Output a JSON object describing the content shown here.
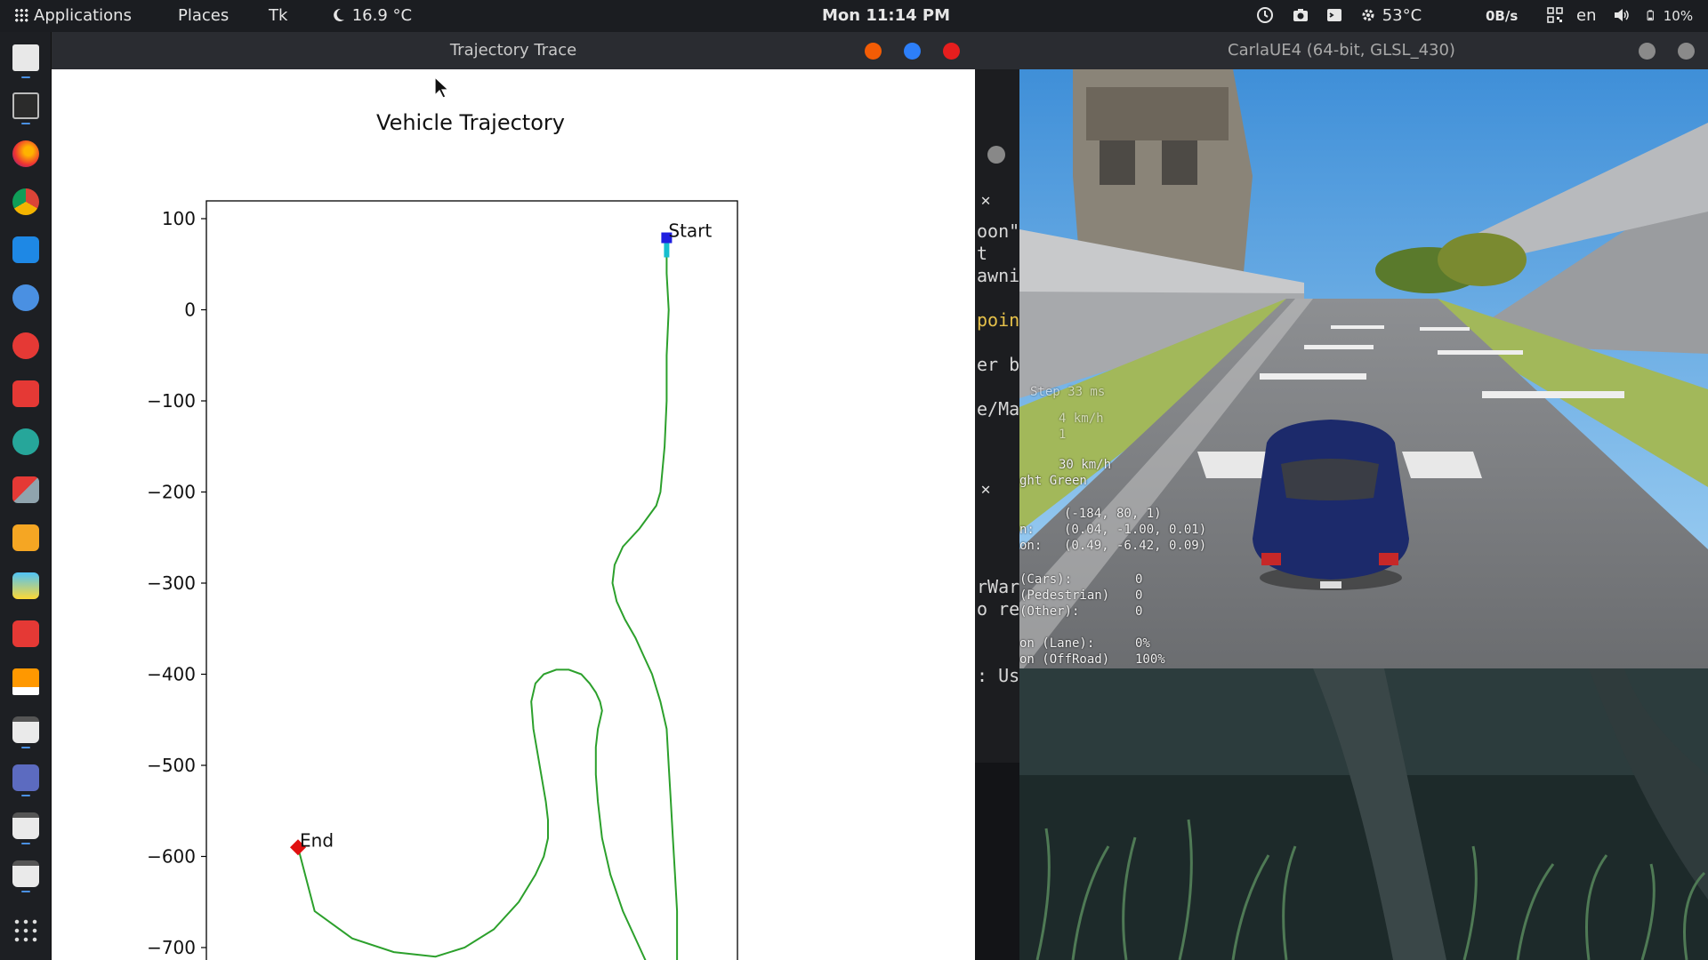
{
  "top_panel": {
    "applications": "Applications",
    "places": "Places",
    "tk": "Tk",
    "weather": "16.9 °C",
    "clock": "Mon 11:14 PM",
    "cpu_temp": "53°C",
    "net_speed": "0B/s",
    "language": "en",
    "battery": "10%"
  },
  "trajectory_window": {
    "title": "Trajectory Trace"
  },
  "carla_window": {
    "title": "CarlaUE4 (64-bit, GLSL_430)"
  },
  "chart_data": {
    "type": "line",
    "title": "Vehicle Trajectory",
    "xlabel": "",
    "ylabel": "",
    "ylim": [
      -750,
      120
    ],
    "yticks": [
      100,
      0,
      -100,
      -200,
      -300,
      -400,
      -500,
      -600,
      -700
    ],
    "ytick_labels": [
      "100",
      "0",
      "−100",
      "−200",
      "−300",
      "−400",
      "−500",
      "−600",
      "−700"
    ],
    "grid": false,
    "series": [
      {
        "color": "#2ca02c",
        "x": [
          -9,
          -9,
          -8,
          -9,
          -9,
          -10,
          -12,
          -14,
          -22,
          -30,
          -34,
          -35,
          -33,
          -29,
          -24,
          -20,
          -16,
          -12,
          -9,
          -8,
          -7,
          -6,
          -5,
          -4,
          -4,
          -4,
          -4,
          -5,
          -6,
          -8,
          -12,
          -16,
          -22,
          -30,
          -36,
          -40,
          -42,
          -43,
          -43,
          -42,
          -41,
          -40,
          -41,
          -43,
          -46,
          -50,
          -56,
          -62,
          -68,
          -72,
          -74,
          -73,
          -70,
          -67,
          -66,
          -66,
          -68,
          -72,
          -80,
          -92,
          -106,
          -120,
          -140,
          -160,
          -178,
          -186
        ],
        "y": [
          75,
          40,
          0,
          -50,
          -100,
          -150,
          -200,
          -215,
          -240,
          -260,
          -280,
          -300,
          -320,
          -340,
          -360,
          -380,
          -400,
          -430,
          -460,
          -500,
          -540,
          -580,
          -620,
          -660,
          -690,
          -710,
          -720,
          -730,
          -740,
          -740,
          -738,
          -730,
          -700,
          -660,
          -620,
          -580,
          -540,
          -510,
          -480,
          -460,
          -450,
          -440,
          -430,
          -420,
          -410,
          -400,
          -395,
          -395,
          -400,
          -410,
          -430,
          -460,
          -500,
          -540,
          -560,
          -580,
          -600,
          -620,
          -650,
          -680,
          -700,
          -710,
          -705,
          -690,
          -660,
          -590
        ]
      }
    ],
    "markers": [
      {
        "label": "Start",
        "color": "#1f1fe0",
        "x": -9,
        "y": 79
      },
      {
        "label": "End",
        "color": "#e01010",
        "x": -186,
        "y": -590
      }
    ]
  },
  "hud": {
    "step": "Step  33 ms",
    "speed": "4 km/h",
    "speed2": "1",
    "speed_limit": "30 km/h",
    "traffic_light": "ght  Green",
    "location": "(-184, 80, 1)",
    "accel_label": "n:",
    "accel": "(0.04, -1.00, 0.01)",
    "gyro_label": "on:",
    "gyro": "(0.49, -6.42, 0.09)",
    "coll_cars": "(Cars):",
    "coll_cars_val": "0",
    "coll_ped": "(Pedestrian)",
    "coll_ped_val": "0",
    "coll_other": "(Other):",
    "coll_other_val": "0",
    "lane": "on (Lane):",
    "lane_val": "0%",
    "offroad": "on (OffRoad)",
    "offroad_val": "100%"
  },
  "side_text": {
    "l1": "oon\"",
    "l2": "t",
    "l3": "awni",
    "l4": "poin",
    "l5": "er b",
    "l6": "e/Ma",
    "l7": "rWar",
    "l8": "o re",
    "l9": ": Us"
  },
  "colors": {
    "panel": "#1b1d21",
    "accent": "#4a90e2",
    "btn_orange": "#f25c05",
    "btn_blue": "#2d7ff9",
    "btn_red": "#e61e1e",
    "trajectory": "#2ca02c"
  }
}
